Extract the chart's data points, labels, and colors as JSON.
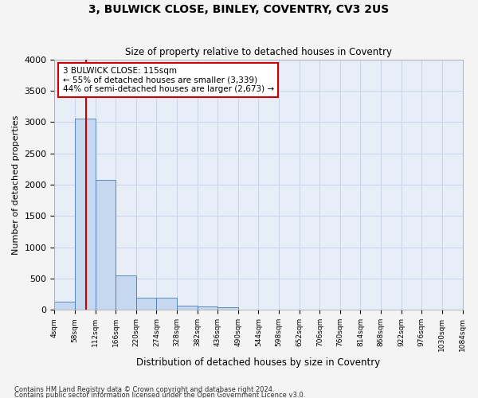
{
  "title1": "3, BULWICK CLOSE, BINLEY, COVENTRY, CV3 2US",
  "title2": "Size of property relative to detached houses in Coventry",
  "xlabel": "Distribution of detached houses by size in Coventry",
  "ylabel": "Number of detached properties",
  "footer1": "Contains HM Land Registry data © Crown copyright and database right 2024.",
  "footer2": "Contains public sector information licensed under the Open Government Licence v3.0.",
  "bin_labels": [
    "4sqm",
    "58sqm",
    "112sqm",
    "166sqm",
    "220sqm",
    "274sqm",
    "328sqm",
    "382sqm",
    "436sqm",
    "490sqm",
    "544sqm",
    "598sqm",
    "652sqm",
    "706sqm",
    "760sqm",
    "814sqm",
    "868sqm",
    "922sqm",
    "976sqm",
    "1030sqm",
    "1084sqm"
  ],
  "bar_values": [
    130,
    3060,
    2070,
    550,
    200,
    200,
    70,
    50,
    40,
    0,
    0,
    0,
    0,
    0,
    0,
    0,
    0,
    0,
    0,
    0
  ],
  "bar_color": "#c5d8f0",
  "bar_edge_color": "#4a7ab5",
  "vline_position": 1.55,
  "annotation_text1": "3 BULWICK CLOSE: 115sqm",
  "annotation_text2": "← 55% of detached houses are smaller (3,339)",
  "annotation_text3": "44% of semi-detached houses are larger (2,673) →",
  "vline_color": "#cc0000",
  "annotation_box_facecolor": "#ffffff",
  "annotation_box_edgecolor": "#cc0000",
  "grid_color": "#c8d4e8",
  "ylim": [
    0,
    4000
  ],
  "yticks": [
    0,
    500,
    1000,
    1500,
    2000,
    2500,
    3000,
    3500,
    4000
  ],
  "bg_color": "#e8eef8",
  "fig_bg_color": "#f4f4f4"
}
